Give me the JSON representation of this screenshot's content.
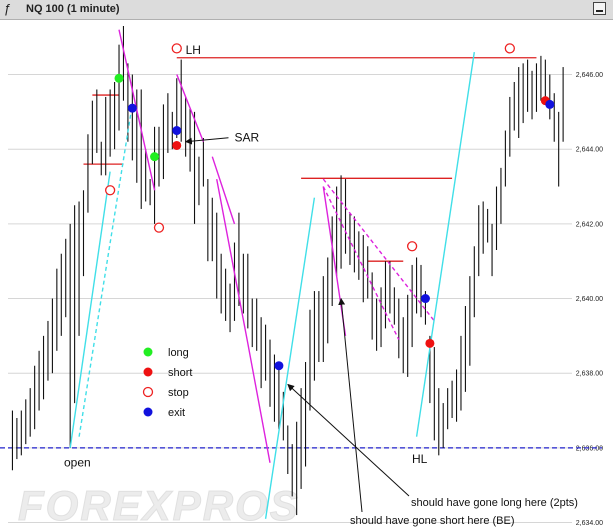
{
  "window": {
    "title": "NQ 100 (1 minute)",
    "icon": "ƒ"
  },
  "watermark": {
    "text": "FOREXPROS"
  },
  "chart_data": {
    "type": "ohlc",
    "title": "NQ 100 (1 minute)",
    "ylim": [
      2633.8,
      2647.3
    ],
    "y_ticks": [
      "2,634.00",
      "2,636.00",
      "2,638.00",
      "2,640.00",
      "2,642.00",
      "2,644.00",
      "2,646.00"
    ],
    "y_tick_values": [
      2634,
      2636,
      2638,
      2640,
      2642,
      2644,
      2646
    ],
    "grid": true,
    "bars": [
      [
        2635.4,
        2637.0
      ],
      [
        2635.7,
        2636.8
      ],
      [
        2635.8,
        2637.0
      ],
      [
        2636.1,
        2637.3
      ],
      [
        2636.3,
        2637.6
      ],
      [
        2636.5,
        2638.2
      ],
      [
        2637.0,
        2638.6
      ],
      [
        2637.3,
        2639.0
      ],
      [
        2637.8,
        2639.4
      ],
      [
        2638.0,
        2640.0
      ],
      [
        2638.6,
        2640.8
      ],
      [
        2639.0,
        2641.2
      ],
      [
        2639.5,
        2641.6
      ],
      [
        2636.0,
        2642.0
      ],
      [
        2637.2,
        2642.5
      ],
      [
        2639.0,
        2642.6
      ],
      [
        2640.6,
        2642.9
      ],
      [
        2642.3,
        2644.4
      ],
      [
        2643.6,
        2645.3
      ],
      [
        2643.9,
        2645.6
      ],
      [
        2643.3,
        2644.2
      ],
      [
        2643.3,
        2645.4
      ],
      [
        2643.8,
        2645.6
      ],
      [
        2644.0,
        2645.8
      ],
      [
        2644.5,
        2646.8
      ],
      [
        2645.3,
        2647.3
      ],
      [
        2644.2,
        2646.3
      ],
      [
        2643.7,
        2646.0
      ],
      [
        2643.1,
        2645.6
      ],
      [
        2642.4,
        2645.6
      ],
      [
        2642.6,
        2644.0
      ],
      [
        2642.5,
        2643.2
      ],
      [
        2642.0,
        2644.6
      ],
      [
        2643.0,
        2644.6
      ],
      [
        2643.2,
        2645.2
      ],
      [
        2643.9,
        2645.5
      ],
      [
        2644.0,
        2645.0
      ],
      [
        2644.3,
        2645.9
      ],
      [
        2644.2,
        2646.4
      ],
      [
        2643.8,
        2645.4
      ],
      [
        2643.4,
        2645.1
      ],
      [
        2642.0,
        2645.0
      ],
      [
        2642.5,
        2643.8
      ],
      [
        2643.0,
        2644.3
      ],
      [
        2641.0,
        2643.2
      ],
      [
        2641.0,
        2642.7
      ],
      [
        2640.0,
        2642.3
      ],
      [
        2639.6,
        2641.2
      ],
      [
        2639.4,
        2640.8
      ],
      [
        2639.1,
        2640.4
      ],
      [
        2639.4,
        2641.5
      ],
      [
        2639.8,
        2642.3
      ],
      [
        2639.6,
        2641.2
      ],
      [
        2639.2,
        2641.2
      ],
      [
        2638.7,
        2640.0
      ],
      [
        2638.6,
        2640.0
      ],
      [
        2637.6,
        2639.5
      ],
      [
        2637.8,
        2639.3
      ],
      [
        2637.1,
        2638.9
      ],
      [
        2636.7,
        2638.5
      ],
      [
        2636.5,
        2638.1
      ],
      [
        2636.2,
        2637.5
      ],
      [
        2635.3,
        2636.6
      ],
      [
        2634.7,
        2636.1
      ],
      [
        2634.2,
        2636.7
      ],
      [
        2634.9,
        2637.6
      ],
      [
        2635.5,
        2638.3
      ],
      [
        2637.0,
        2639.7
      ],
      [
        2637.8,
        2640.2
      ],
      [
        2638.3,
        2640.2
      ],
      [
        2638.3,
        2640.6
      ],
      [
        2638.8,
        2641.1
      ],
      [
        2639.8,
        2642.2
      ],
      [
        2640.6,
        2643.0
      ],
      [
        2640.8,
        2643.3
      ],
      [
        2641.2,
        2643.2
      ],
      [
        2640.9,
        2642.3
      ],
      [
        2640.7,
        2642.2
      ],
      [
        2640.5,
        2641.8
      ],
      [
        2639.9,
        2641.7
      ],
      [
        2640.0,
        2641.4
      ],
      [
        2638.9,
        2640.7
      ],
      [
        2638.6,
        2640.0
      ],
      [
        2638.7,
        2640.3
      ],
      [
        2639.2,
        2641.0
      ],
      [
        2639.6,
        2641.0
      ],
      [
        2639.3,
        2640.3
      ],
      [
        2638.4,
        2640.0
      ],
      [
        2638.0,
        2639.5
      ],
      [
        2637.9,
        2640.1
      ],
      [
        2638.7,
        2640.9
      ],
      [
        2639.6,
        2641.1
      ],
      [
        2639.5,
        2640.9
      ],
      [
        2639.3,
        2640.2
      ],
      [
        2637.2,
        2639.0
      ],
      [
        2636.2,
        2638.7
      ],
      [
        2635.8,
        2637.6
      ],
      [
        2636.0,
        2637.2
      ],
      [
        2636.5,
        2637.6
      ],
      [
        2636.8,
        2637.8
      ],
      [
        2636.7,
        2638.1
      ],
      [
        2637.0,
        2639.0
      ],
      [
        2637.5,
        2639.8
      ],
      [
        2638.2,
        2640.6
      ],
      [
        2639.5,
        2641.4
      ],
      [
        2640.6,
        2642.5
      ],
      [
        2641.2,
        2642.6
      ],
      [
        2641.5,
        2642.4
      ],
      [
        2640.6,
        2642.0
      ],
      [
        2641.3,
        2643.0
      ],
      [
        2642.0,
        2643.5
      ],
      [
        2643.0,
        2644.5
      ],
      [
        2643.8,
        2645.4
      ],
      [
        2644.5,
        2645.8
      ],
      [
        2644.3,
        2646.2
      ],
      [
        2644.7,
        2646.3
      ],
      [
        2645.0,
        2646.4
      ],
      [
        2644.8,
        2646.1
      ],
      [
        2645.0,
        2646.3
      ],
      [
        2645.3,
        2646.5
      ],
      [
        2645.2,
        2646.4
      ],
      [
        2644.8,
        2646.0
      ],
      [
        2644.2,
        2645.5
      ],
      [
        2643.0,
        2645.0
      ],
      [
        2644.2,
        2646.2
      ]
    ],
    "series": [
      {
        "name": "long",
        "marker": "filled-circle",
        "color": "#22ee22",
        "points": [
          [
            24,
            2645.9
          ],
          [
            32,
            2643.8
          ]
        ]
      },
      {
        "name": "short",
        "marker": "filled-circle",
        "color": "#ee1111",
        "points": [
          [
            37,
            2644.1
          ],
          [
            94,
            2638.8
          ],
          [
            120,
            2645.3
          ]
        ]
      },
      {
        "name": "stop",
        "marker": "hollow-circle",
        "color": "#ee2222",
        "points": [
          [
            22,
            2642.9
          ],
          [
            33,
            2641.9
          ],
          [
            37,
            2646.7
          ],
          [
            90,
            2641.4
          ],
          [
            112,
            2646.7
          ]
        ]
      },
      {
        "name": "exit",
        "marker": "filled-circle",
        "color": "#1111dd",
        "points": [
          [
            27,
            2645.1
          ],
          [
            37,
            2644.5
          ],
          [
            60,
            2638.2
          ],
          [
            93,
            2640.0
          ],
          [
            121,
            2645.2
          ]
        ]
      }
    ],
    "legend": {
      "position": "center-left",
      "entries": [
        "long",
        "short",
        "stop",
        "exit"
      ]
    },
    "horizontal_lines": [
      {
        "label": "LH",
        "y": 2646.45,
        "x_start": 37,
        "x_end": 118,
        "color": "#dd2222"
      },
      {
        "y": 2645.45,
        "x_start": 18,
        "x_end": 24,
        "color": "#dd2222"
      },
      {
        "y": 2643.6,
        "x_start": 16,
        "x_end": 25,
        "color": "#dd2222"
      },
      {
        "y": 2643.22,
        "x_start": 65,
        "x_end": 99,
        "color": "#dd2222"
      },
      {
        "y": 2641.0,
        "x_start": 80,
        "x_end": 88,
        "color": "#dd2222"
      },
      {
        "y": 2636.0,
        "x_start": 0,
        "x_end": 125,
        "color": "#2222cc",
        "dashed": true
      }
    ],
    "trend_lines": [
      {
        "color": "#dd22dd",
        "points": [
          [
            24,
            2647.2
          ],
          [
            32,
            2642.9
          ]
        ]
      },
      {
        "color": "#dd22dd",
        "points": [
          [
            37,
            2646.0
          ],
          [
            43,
            2644.2
          ]
        ]
      },
      {
        "color": "#dd22dd",
        "points": [
          [
            45,
            2643.8
          ],
          [
            50,
            2642.0
          ]
        ]
      },
      {
        "color": "#dd22dd",
        "points": [
          [
            46,
            2643.2
          ],
          [
            53,
            2638.8
          ],
          [
            58,
            2635.6
          ]
        ]
      },
      {
        "color": "#dd22dd",
        "points": [
          [
            70,
            2643.0
          ],
          [
            75,
            2639.0
          ]
        ]
      },
      {
        "color": "#dd22dd",
        "dashed": true,
        "points": [
          [
            70,
            2643.0
          ],
          [
            87,
            2638.9
          ]
        ]
      },
      {
        "color": "#dd22dd",
        "dashed": true,
        "points": [
          [
            70,
            2643.2
          ],
          [
            95,
            2639.4
          ]
        ]
      },
      {
        "color": "#40dfe8",
        "points": [
          [
            13,
            2636.0
          ],
          [
            22,
            2643.4
          ]
        ]
      },
      {
        "color": "#40dfe8",
        "dashed": true,
        "points": [
          [
            15,
            2636.3
          ],
          [
            27,
            2645.2
          ]
        ]
      },
      {
        "color": "#40dfe8",
        "points": [
          [
            57,
            2634.1
          ],
          [
            68,
            2642.7
          ]
        ]
      },
      {
        "color": "#40dfe8",
        "points": [
          [
            91,
            2636.3
          ],
          [
            104,
            2646.6
          ]
        ]
      }
    ],
    "annotations": [
      {
        "text": "LH",
        "x": 39,
        "y": 2646.55
      },
      {
        "text": "SAR",
        "x": 50,
        "y": 2644.2,
        "arrow_to": [
          39,
          2644.2
        ]
      },
      {
        "text": "HL",
        "x": 81,
        "y": 2635.6
      },
      {
        "text": "open",
        "x": 11,
        "y": 2635.5
      },
      {
        "text": "should have gone long here (2pts)",
        "x": 85,
        "y": 2634.3,
        "arrow_to": [
          62,
          2637.7
        ]
      },
      {
        "text": "should have gone short here (BE)",
        "x": 69,
        "y": 2633.9,
        "arrow_to": [
          74,
          2640.0
        ]
      }
    ]
  }
}
